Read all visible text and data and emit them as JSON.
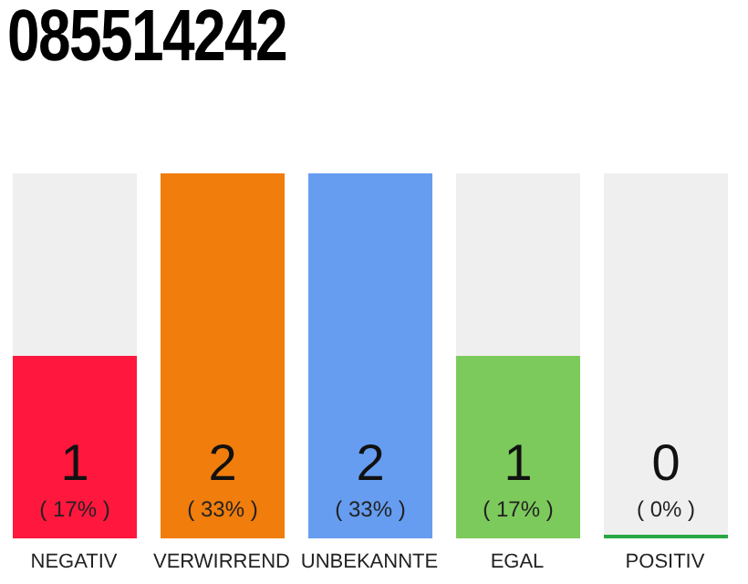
{
  "chart_data": {
    "type": "bar",
    "title": "085514242",
    "categories": [
      "NEGATIV",
      "VERWIRREND",
      "UNBEKANNTE",
      "EGAL",
      "POSITIV"
    ],
    "values": [
      1,
      2,
      2,
      1,
      0
    ],
    "colors": [
      "#ff173d",
      "#f07d0c",
      "#669df0",
      "#7dca5c",
      "#28a745"
    ],
    "ylim": [
      0,
      2
    ],
    "tick_labels": "x",
    "data_labels": true,
    "grid": false,
    "legend": false,
    "annotations": [
      "( 17% )",
      "( 33% )",
      "( 33% )",
      "( 17% )",
      "( 0% )"
    ]
  }
}
